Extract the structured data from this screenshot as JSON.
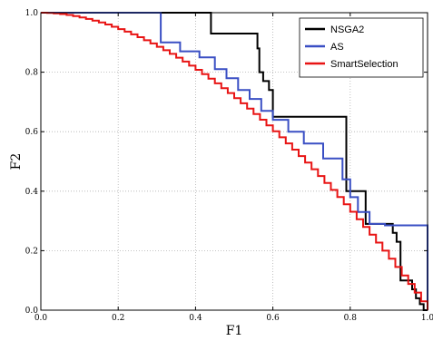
{
  "chart_data": {
    "type": "line",
    "title": "",
    "xlabel": "F1",
    "ylabel": "F2",
    "xlim": [
      0.0,
      1.0
    ],
    "ylim": [
      0.0,
      1.0
    ],
    "xticks": [
      "0.0",
      "0.2",
      "0.4",
      "0.6",
      "0.8",
      "1.0"
    ],
    "yticks": [
      "0.0",
      "0.2",
      "0.4",
      "0.6",
      "0.8",
      "1.0"
    ],
    "grid": true,
    "legend_position": "top-right",
    "series": [
      {
        "name": "NSGA2",
        "color": "#000000",
        "step": true,
        "points": [
          [
            0.0,
            1.0
          ],
          [
            0.44,
            1.0
          ],
          [
            0.44,
            0.93
          ],
          [
            0.56,
            0.93
          ],
          [
            0.56,
            0.88
          ],
          [
            0.565,
            0.88
          ],
          [
            0.565,
            0.8
          ],
          [
            0.575,
            0.8
          ],
          [
            0.575,
            0.77
          ],
          [
            0.59,
            0.77
          ],
          [
            0.59,
            0.74
          ],
          [
            0.6,
            0.74
          ],
          [
            0.6,
            0.65
          ],
          [
            0.79,
            0.65
          ],
          [
            0.79,
            0.4
          ],
          [
            0.84,
            0.4
          ],
          [
            0.84,
            0.29
          ],
          [
            0.91,
            0.29
          ],
          [
            0.91,
            0.26
          ],
          [
            0.92,
            0.26
          ],
          [
            0.92,
            0.23
          ],
          [
            0.93,
            0.23
          ],
          [
            0.93,
            0.1
          ],
          [
            0.96,
            0.1
          ],
          [
            0.96,
            0.07
          ],
          [
            0.97,
            0.07
          ],
          [
            0.97,
            0.04
          ],
          [
            0.98,
            0.04
          ],
          [
            0.98,
            0.02
          ],
          [
            0.99,
            0.02
          ],
          [
            0.99,
            0.0
          ],
          [
            1.0,
            0.0
          ]
        ]
      },
      {
        "name": "AS",
        "color": "#3a4fc4",
        "step": true,
        "points": [
          [
            0.0,
            1.0
          ],
          [
            0.31,
            1.0
          ],
          [
            0.31,
            0.9
          ],
          [
            0.36,
            0.9
          ],
          [
            0.36,
            0.87
          ],
          [
            0.41,
            0.87
          ],
          [
            0.41,
            0.85
          ],
          [
            0.45,
            0.85
          ],
          [
            0.45,
            0.81
          ],
          [
            0.48,
            0.81
          ],
          [
            0.48,
            0.78
          ],
          [
            0.51,
            0.78
          ],
          [
            0.51,
            0.74
          ],
          [
            0.54,
            0.74
          ],
          [
            0.54,
            0.71
          ],
          [
            0.57,
            0.71
          ],
          [
            0.57,
            0.67
          ],
          [
            0.6,
            0.67
          ],
          [
            0.6,
            0.64
          ],
          [
            0.64,
            0.64
          ],
          [
            0.64,
            0.6
          ],
          [
            0.68,
            0.6
          ],
          [
            0.68,
            0.56
          ],
          [
            0.73,
            0.56
          ],
          [
            0.73,
            0.51
          ],
          [
            0.78,
            0.51
          ],
          [
            0.78,
            0.44
          ],
          [
            0.8,
            0.44
          ],
          [
            0.8,
            0.38
          ],
          [
            0.82,
            0.38
          ],
          [
            0.82,
            0.33
          ],
          [
            0.85,
            0.33
          ],
          [
            0.85,
            0.29
          ],
          [
            0.89,
            0.29
          ],
          [
            0.89,
            0.285
          ],
          [
            1.0,
            0.285
          ],
          [
            1.0,
            0.0
          ]
        ]
      },
      {
        "name": "SmartSelection",
        "color": "#e81414",
        "step": true,
        "curve_exponent": 1.8,
        "steps": 60
      }
    ]
  }
}
